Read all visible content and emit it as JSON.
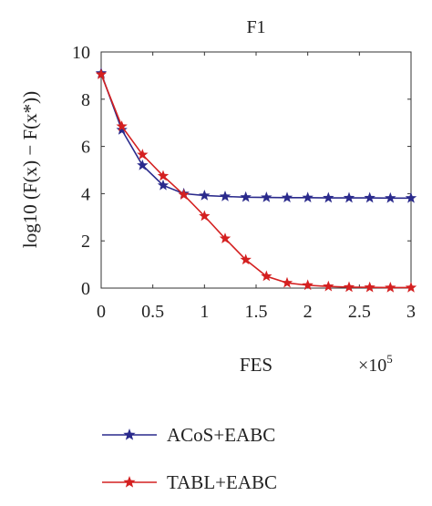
{
  "chart_data": {
    "type": "line",
    "title": "F1",
    "xlabel": "FES",
    "ylabel": "log10 (F(x) − F(x*))",
    "x_multiplier_base": "×10",
    "x_multiplier_exp": "5",
    "xlim": [
      0,
      3
    ],
    "ylim": [
      0,
      10
    ],
    "x_ticks": [
      "0",
      "0.5",
      "1",
      "1.5",
      "2",
      "2.5",
      "3"
    ],
    "y_ticks": [
      "0",
      "2",
      "4",
      "6",
      "8",
      "10"
    ],
    "legend_position": "bottom",
    "series": [
      {
        "name": "ACoS+EABC",
        "color": "#2a2a8c",
        "marker": "star",
        "x": [
          0,
          0.2,
          0.4,
          0.6,
          0.8,
          1.0,
          1.2,
          1.4,
          1.6,
          1.8,
          2.0,
          2.2,
          2.4,
          2.6,
          2.8,
          3.0
        ],
        "values": [
          9.1,
          6.7,
          5.2,
          4.35,
          4.0,
          3.92,
          3.88,
          3.85,
          3.84,
          3.83,
          3.83,
          3.82,
          3.82,
          3.82,
          3.81,
          3.81
        ]
      },
      {
        "name": "TABL+EABC",
        "color": "#d42020",
        "marker": "star",
        "x": [
          0,
          0.2,
          0.4,
          0.6,
          0.8,
          1.0,
          1.2,
          1.4,
          1.6,
          1.8,
          2.0,
          2.2,
          2.4,
          2.6,
          2.8,
          3.0
        ],
        "values": [
          9.05,
          6.85,
          5.65,
          4.75,
          3.95,
          3.05,
          2.1,
          1.2,
          0.5,
          0.22,
          0.12,
          0.07,
          0.04,
          0.03,
          0.02,
          0.02
        ]
      }
    ]
  }
}
